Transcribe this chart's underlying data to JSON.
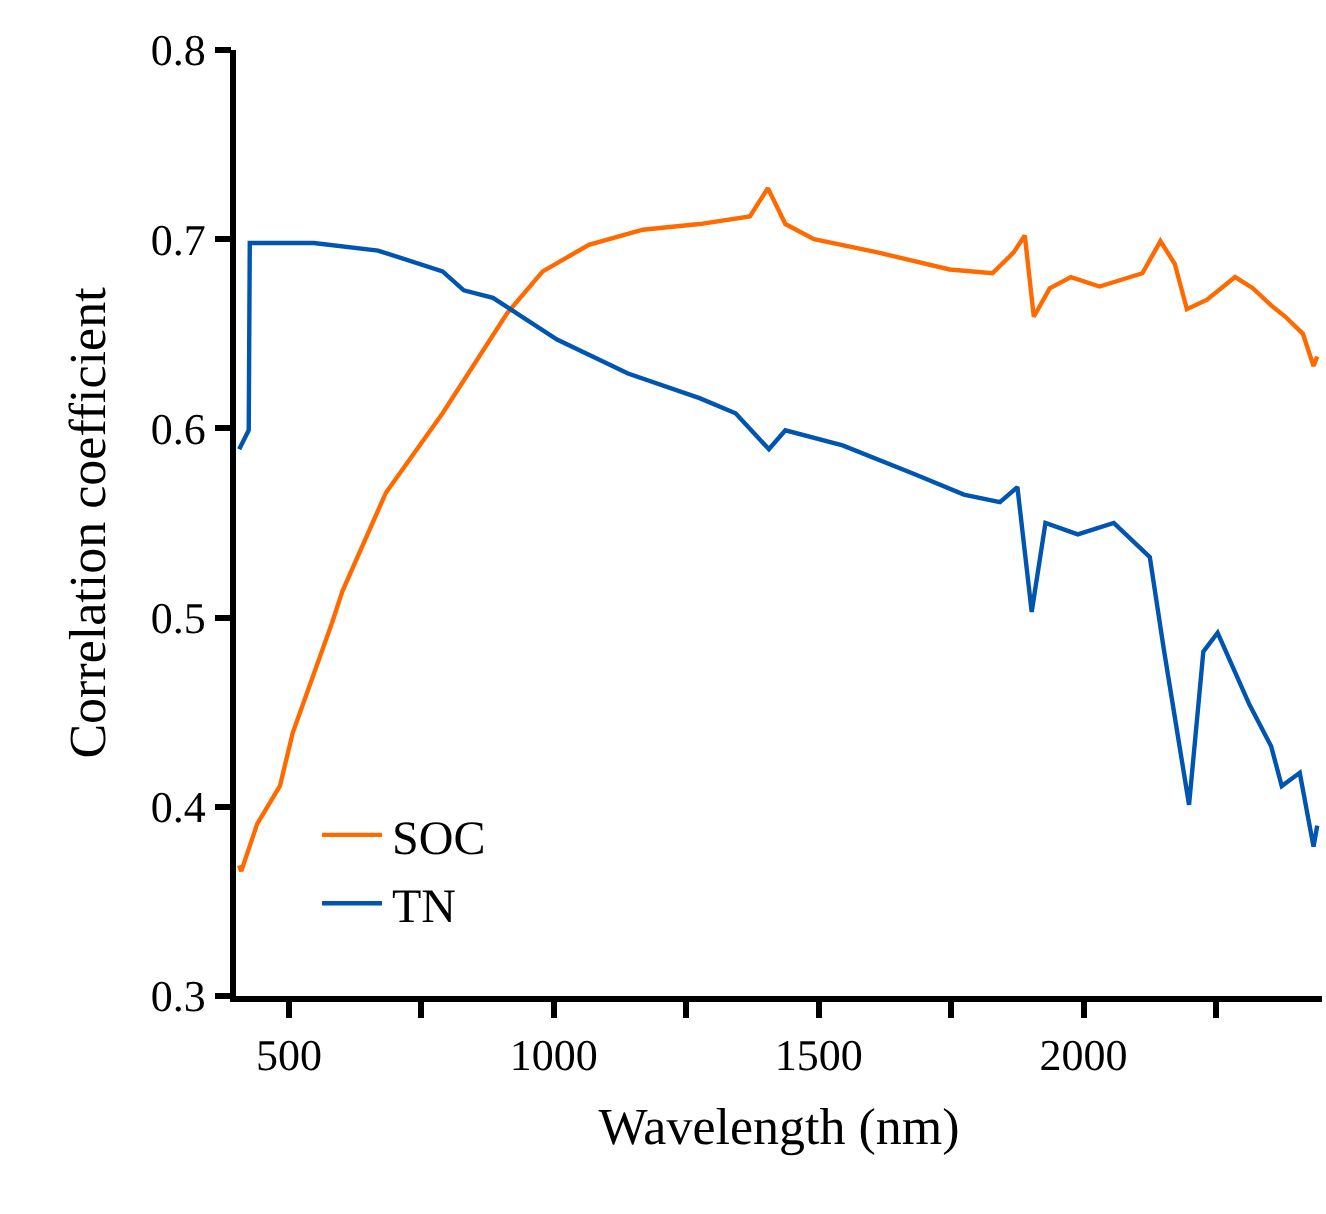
{
  "chart_data": {
    "type": "line",
    "xlabel": "Wavelength (nm)",
    "ylabel": "Correlation coefficient",
    "xlim": [
      400,
      2450
    ],
    "xticks": [
      500,
      {
        "value": 750,
        "label": null
      },
      1000,
      {
        "value": 1250,
        "label": null
      },
      1500,
      {
        "value": 1750,
        "label": null
      },
      2000,
      {
        "value": 2250,
        "label": null
      }
    ],
    "ylim": [
      0.3,
      0.8
    ],
    "yticks": [
      0.3,
      0.4,
      0.5,
      0.6,
      0.7,
      0.8
    ],
    "legend": "bottom left",
    "marker": "none",
    "line_style": "solid",
    "series": [
      {
        "name": "SOC",
        "color": "#ff6a00",
        "x": [
          406,
          410,
          440,
          483,
          507,
          581,
          601,
          683,
          790,
          912,
          979,
          1066,
          1168,
          1275,
          1370,
          1404,
          1437,
          1491,
          1611,
          1747,
          1828,
          1868,
          1889,
          1906,
          1936,
          1976,
          2030,
          2111,
          2145,
          2172,
          2195,
          2233,
          2286,
          2320,
          2354,
          2381,
          2414,
          2434,
          2441
        ],
        "values": [
          0.369,
          0.366,
          0.391,
          0.411,
          0.439,
          0.497,
          0.514,
          0.566,
          0.608,
          0.661,
          0.683,
          0.697,
          0.705,
          0.708,
          0.712,
          0.727,
          0.708,
          0.7,
          0.693,
          0.684,
          0.682,
          0.693,
          0.702,
          0.659,
          0.674,
          0.68,
          0.675,
          0.682,
          0.699,
          0.687,
          0.663,
          0.668,
          0.68,
          0.674,
          0.665,
          0.659,
          0.65,
          0.633,
          0.638
        ]
      },
      {
        "name": "TN",
        "color": "#0055b0",
        "x": [
          406,
          424,
          426,
          547,
          668,
          790,
          830,
          885,
          1006,
          1140,
          1275,
          1343,
          1406,
          1437,
          1545,
          1679,
          1774,
          1842,
          1875,
          1902,
          1928,
          1989,
          2057,
          2125,
          2151,
          2199,
          2226,
          2253,
          2313,
          2354,
          2374,
          2408,
          2434,
          2441
        ],
        "values": [
          0.589,
          0.599,
          0.698,
          0.698,
          0.694,
          0.683,
          0.673,
          0.669,
          0.647,
          0.629,
          0.616,
          0.608,
          0.589,
          0.599,
          0.591,
          0.576,
          0.565,
          0.561,
          0.569,
          0.503,
          0.55,
          0.544,
          0.55,
          0.532,
          0.484,
          0.401,
          0.482,
          0.492,
          0.454,
          0.432,
          0.411,
          0.418,
          0.379,
          0.39
        ]
      }
    ]
  }
}
